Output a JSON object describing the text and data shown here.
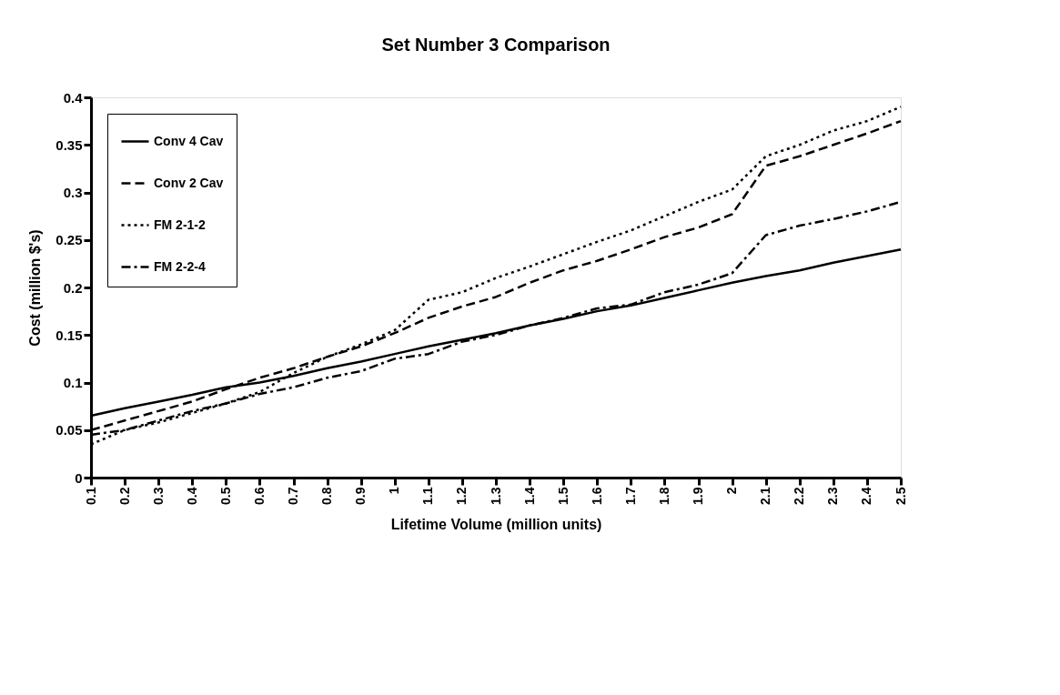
{
  "chart_data": {
    "type": "line",
    "title": "Set Number 3 Comparison",
    "xlabel": "Lifetime Volume (million units)",
    "ylabel": "Cost    (million    $'s)",
    "categories": [
      "0.1",
      "0.2",
      "0.3",
      "0.4",
      "0.5",
      "0.6",
      "0.7",
      "0.8",
      "0.9",
      "1",
      "1.1",
      "1.2",
      "1.3",
      "1.4",
      "1.5",
      "1.6",
      "1.7",
      "1.8",
      "1.9",
      "2",
      "2.1",
      "2.2",
      "2.3",
      "2.4",
      "2.5"
    ],
    "series": [
      {
        "name": "Conv 4 Cav",
        "color": "#000000",
        "line_style": "solid",
        "values": [
          0.065,
          0.073,
          0.08,
          0.087,
          0.095,
          0.1,
          0.107,
          0.115,
          0.122,
          0.13,
          0.138,
          0.145,
          0.152,
          0.16,
          0.167,
          0.175,
          0.181,
          0.189,
          0.197,
          0.205,
          0.212,
          0.218,
          0.226,
          0.233,
          0.24
        ]
      },
      {
        "name": "Conv 2 Cav",
        "color": "#000000",
        "line_style": "dashed",
        "values": [
          0.05,
          0.06,
          0.07,
          0.08,
          0.093,
          0.105,
          0.115,
          0.127,
          0.138,
          0.152,
          0.168,
          0.18,
          0.19,
          0.205,
          0.218,
          0.228,
          0.24,
          0.253,
          0.263,
          0.277,
          0.328,
          0.338,
          0.35,
          0.362,
          0.375
        ]
      },
      {
        "name": "FM  2-1-2",
        "color": "#000000",
        "line_style": "dotted",
        "values": [
          0.035,
          0.05,
          0.058,
          0.068,
          0.078,
          0.09,
          0.11,
          0.127,
          0.14,
          0.155,
          0.187,
          0.195,
          0.21,
          0.222,
          0.235,
          0.248,
          0.26,
          0.275,
          0.29,
          0.303,
          0.338,
          0.35,
          0.365,
          0.375,
          0.39
        ]
      },
      {
        "name": "FM  2-2-4",
        "color": "#000000",
        "line_style": "dashdot",
        "values": [
          0.045,
          0.05,
          0.06,
          0.07,
          0.078,
          0.088,
          0.095,
          0.105,
          0.112,
          0.125,
          0.13,
          0.143,
          0.15,
          0.16,
          0.168,
          0.178,
          0.182,
          0.195,
          0.203,
          0.215,
          0.255,
          0.265,
          0.272,
          0.28,
          0.29
        ]
      }
    ],
    "ylim": [
      0,
      0.4
    ],
    "yticks": [
      0,
      0.05,
      0.1,
      0.15,
      0.2,
      0.25,
      0.3,
      0.35,
      0.4
    ],
    "grid": false,
    "legend": "top left",
    "marker": "none"
  }
}
